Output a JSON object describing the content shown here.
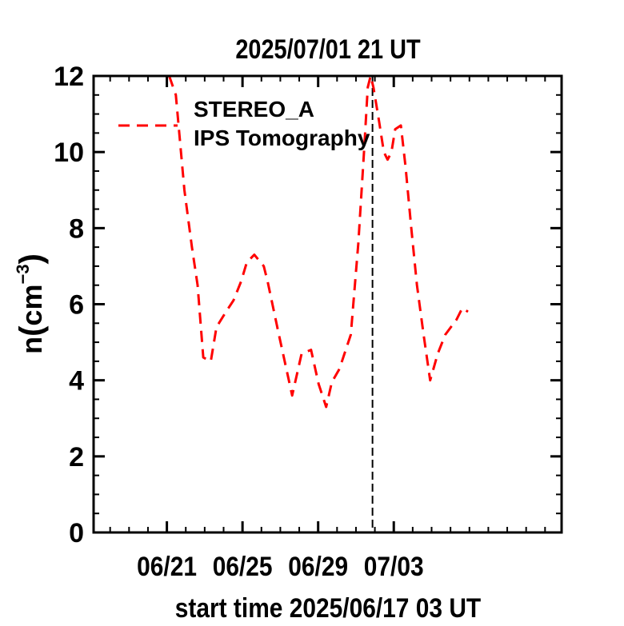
{
  "chart_data": {
    "type": "line",
    "title": "2025/07/01 21 UT",
    "xlabel": "start time 2025/06/17 03 UT",
    "ylabel_main": "n",
    "ylabel_unit": "cm",
    "ylabel_exp": "−3",
    "x_unit": "days since start",
    "xlim": [
      0,
      24.75
    ],
    "ylim": [
      0,
      12
    ],
    "x_ticks": [
      {
        "label": "06/21",
        "x": 3.875
      },
      {
        "label": "06/25",
        "x": 7.875
      },
      {
        "label": "06/29",
        "x": 11.875
      },
      {
        "label": "07/03",
        "x": 15.875
      }
    ],
    "y_ticks": [
      0,
      2,
      4,
      6,
      8,
      10,
      12
    ],
    "y_tick_labels": [
      "0",
      "2",
      "4",
      "6",
      "8",
      "10",
      "12"
    ],
    "vline_x": 14.75,
    "legend": {
      "line1": "STEREO_A",
      "line2": "IPS Tomography"
    },
    "series": [
      {
        "name": "STEREO_A IPS Tomography",
        "color": "#ff0000",
        "x": [
          4.0,
          4.35,
          4.8,
          5.2,
          5.5,
          5.8,
          6.2,
          6.5,
          7.0,
          7.4,
          7.8,
          8.1,
          8.5,
          9.0,
          9.2,
          9.8,
          10.5,
          11.0,
          11.5,
          11.9,
          12.3,
          12.6,
          13.0,
          13.6,
          14.0,
          14.3,
          14.5,
          14.65,
          14.8,
          15.1,
          15.35,
          15.55,
          15.75,
          15.95,
          16.25,
          16.5,
          16.8,
          17.1,
          17.45,
          17.8,
          18.2,
          18.6,
          19.2,
          19.5,
          19.8
        ],
        "y": [
          12.0,
          11.5,
          9.0,
          7.5,
          6.5,
          4.6,
          4.5,
          5.4,
          5.8,
          6.1,
          6.6,
          7.1,
          7.3,
          7.0,
          6.6,
          5.2,
          3.6,
          4.7,
          4.8,
          3.9,
          3.3,
          3.95,
          4.3,
          5.2,
          7.6,
          10.0,
          11.7,
          12.0,
          11.7,
          10.8,
          10.0,
          9.8,
          10.0,
          10.6,
          10.7,
          9.6,
          8.0,
          6.5,
          5.2,
          4.0,
          4.7,
          5.2,
          5.6,
          5.9,
          5.8
        ]
      }
    ]
  }
}
